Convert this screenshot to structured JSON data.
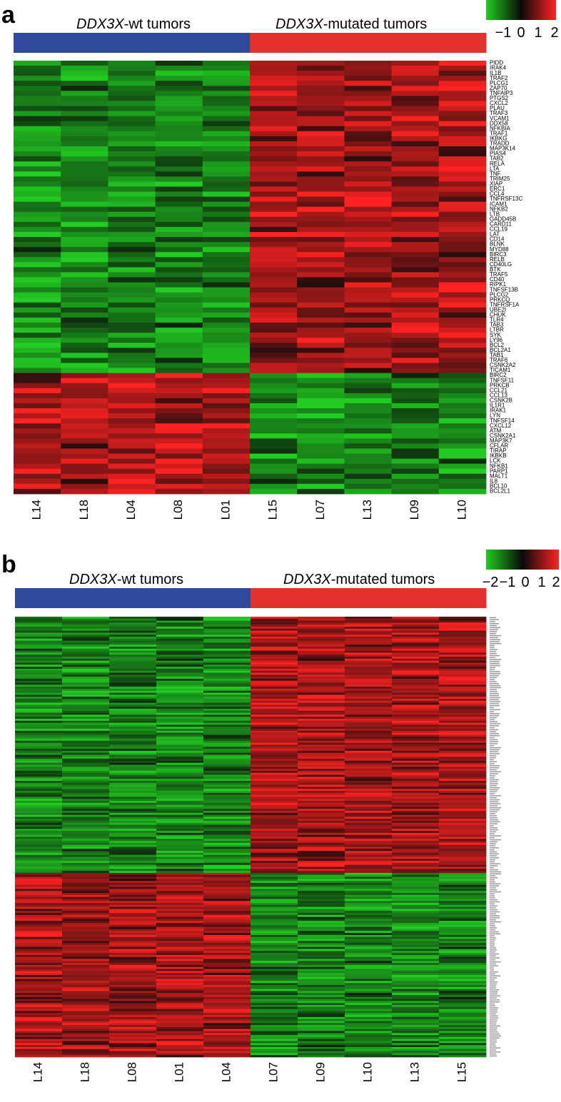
{
  "colors": {
    "low": "#22cc22",
    "mid": "#0a0a0a",
    "high": "#ff2222",
    "wt_bar": "#2e4a9c",
    "mut_bar": "#e3302b"
  },
  "panels": {
    "a": {
      "letter": "a",
      "group_wt_italic": "DDX3X",
      "group_wt_rest": "-wt tumors",
      "group_mut_italic": "DDX3X",
      "group_mut_rest": "-mutated tumors",
      "scale_ticks": [
        "−1",
        "0",
        "1",
        "2"
      ]
    },
    "b": {
      "letter": "b",
      "group_wt_italic": "DDX3X",
      "group_wt_rest": "-wt tumors",
      "group_mut_italic": "DDX3X",
      "group_mut_rest": "-mutated tumors",
      "scale_ticks": [
        "−2",
        "−1",
        "0",
        "1",
        "2"
      ]
    }
  },
  "chart_data": [
    {
      "type": "heatmap",
      "panel": "a",
      "scale_range": [
        -1.5,
        2.5
      ],
      "columns": [
        "L14",
        "L18",
        "L04",
        "L08",
        "L01",
        "L15",
        "L07",
        "L13",
        "L09",
        "L10"
      ],
      "column_groups": [
        "wt",
        "wt",
        "wt",
        "wt",
        "wt",
        "mutated",
        "mutated",
        "mutated",
        "mutated",
        "mutated"
      ],
      "rows": [
        "PIDD",
        "IRAK4",
        "IL1B",
        "TRAF2",
        "PLCG1",
        "ZAP70",
        "TNFAIP3",
        "PTGS2",
        "CXCL2",
        "PLAU",
        "TRAF3",
        "VCAM1",
        "DDX58",
        "NFKBIA",
        "TRAF1",
        "IKBKG",
        "TRADD",
        "MAP3K14",
        "PIAS4",
        "TAB2",
        "RELA",
        "LTA",
        "TNF",
        "TRIM25",
        "XIAP",
        "ERC1",
        "CCL4",
        "TNFRSF13C",
        "ICAM1",
        "NFKB2",
        "LTB",
        "GADD45B",
        "CARD11",
        "CCL19",
        "LAT",
        "CD14",
        "BLNK",
        "MYD88",
        "BIRC3",
        "RELB",
        "CD40LG",
        "BTK",
        "TRAF5",
        "CD40",
        "RIPK1",
        "TNFSF13B",
        "PLCG2",
        "PRKCQ",
        "TNFRSF1A",
        "UBE2I",
        "CHUK",
        "TLR4",
        "TAB3",
        "LTBR",
        "SYK",
        "LY96",
        "BCL2",
        "BCL2A1",
        "TAB1",
        "TRAF6",
        "CSNK2A2",
        "TICAM1",
        "BIRC2",
        "TNFSF11",
        "PRKCB",
        "CCL21",
        "CCL13",
        "CSNK2B",
        "IL1R1",
        "IRAK1",
        "LYN",
        "TNFSF14",
        "CXCL12",
        "ATM",
        "CSNK2A1",
        "MAP3K7",
        "CFLAR",
        "TIRAP",
        "IKBKB",
        "LCK",
        "NFKB1",
        "PARP1",
        "MALT1",
        "IL8",
        "BCL10",
        "BCL2L1"
      ]
    },
    {
      "type": "heatmap",
      "panel": "b",
      "scale_range": [
        -2.5,
        2.5
      ],
      "columns": [
        "L14",
        "L18",
        "L08",
        "L01",
        "L04",
        "L07",
        "L09",
        "L10",
        "L13",
        "L15"
      ],
      "column_groups": [
        "wt",
        "wt",
        "wt",
        "wt",
        "wt",
        "mutated",
        "mutated",
        "mutated",
        "mutated",
        "mutated"
      ],
      "n_rows": 220
    }
  ]
}
